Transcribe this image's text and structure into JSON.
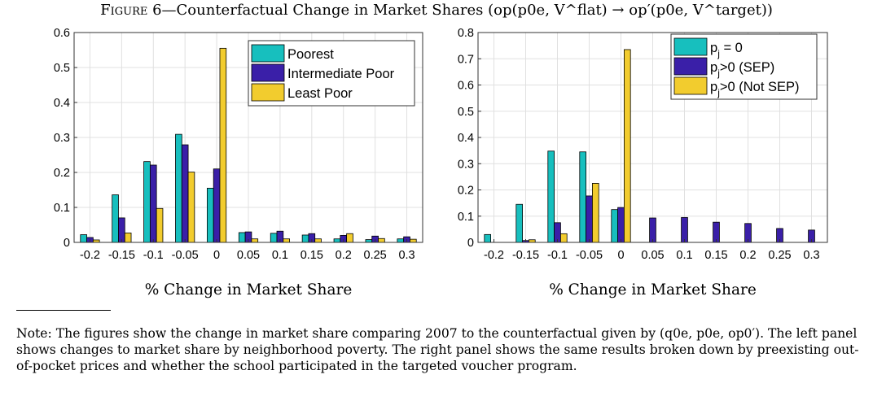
{
  "figure": {
    "label": "Figure 6",
    "title_text": "—Counterfactual Change in Market Shares",
    "title_formula": "(op(p0e, V^flat) → op′(p0e, V^target))"
  },
  "colors": {
    "teal": "#17bfbe",
    "purple": "#3a1fa8",
    "yellow": "#f2cc2e"
  },
  "chart_data": [
    {
      "type": "bar",
      "categories": [
        "-0.2",
        "-0.15",
        "-0.1",
        "-0.05",
        "0",
        "0.05",
        "0.1",
        "0.15",
        "0.2",
        "0.25",
        "0.3"
      ],
      "series": [
        {
          "name": "Poorest",
          "color": "#17bfbe",
          "values": [
            0.022,
            0.136,
            0.231,
            0.309,
            0.155,
            0.028,
            0.026,
            0.021,
            0.01,
            0.008,
            0.01
          ]
        },
        {
          "name": "Intermediate Poor",
          "color": "#3a1fa8",
          "values": [
            0.014,
            0.07,
            0.221,
            0.279,
            0.21,
            0.03,
            0.032,
            0.025,
            0.02,
            0.018,
            0.016
          ]
        },
        {
          "name": "Least Poor",
          "color": "#f2cc2e",
          "values": [
            0.007,
            0.027,
            0.097,
            0.201,
            0.555,
            0.01,
            0.01,
            0.01,
            0.025,
            0.011,
            0.009
          ]
        }
      ],
      "xlabel": "% Change in Market Share",
      "ylabel": "",
      "ylim": [
        0,
        0.6
      ],
      "yticks": [
        "0",
        "0.1",
        "0.2",
        "0.3",
        "0.4",
        "0.5",
        "0.6"
      ],
      "grid": true,
      "legend": "top-right"
    },
    {
      "type": "bar",
      "categories": [
        "-0.2",
        "-0.15",
        "-0.1",
        "-0.05",
        "0",
        "0.05",
        "0.1",
        "0.15",
        "0.2",
        "0.25",
        "0.3"
      ],
      "series": [
        {
          "name": "p_j = 0",
          "color": "#17bfbe",
          "values": [
            0.03,
            0.145,
            0.348,
            0.345,
            0.125,
            0,
            0,
            0,
            0,
            0,
            0
          ]
        },
        {
          "name": "p_j>0 (SEP)",
          "color": "#3a1fa8",
          "values": [
            0,
            0.007,
            0.075,
            0.177,
            0.133,
            0.093,
            0.095,
            0.077,
            0.072,
            0.053,
            0.047
          ]
        },
        {
          "name": "p_j>0 (Not SEP)",
          "color": "#f2cc2e",
          "values": [
            0,
            0.01,
            0.033,
            0.225,
            0.735,
            0,
            0,
            0,
            0,
            0,
            0
          ]
        }
      ],
      "xlabel": "% Change in Market Share",
      "ylabel": "",
      "ylim": [
        0,
        0.8
      ],
      "yticks": [
        "0",
        "0.1",
        "0.2",
        "0.3",
        "0.4",
        "0.5",
        "0.6",
        "0.7",
        "0.8"
      ],
      "grid": true,
      "legend": "top-right"
    }
  ],
  "rule_note": "Note:",
  "note": "The figures show the change in market share comparing 2007 to the counterfactual given by (q0e, p0e, op0′). The left panel shows changes to market share by neighborhood poverty. The right panel shows the same results broken down by preexisting out-of-pocket prices and whether the school participated in the targeted voucher program."
}
